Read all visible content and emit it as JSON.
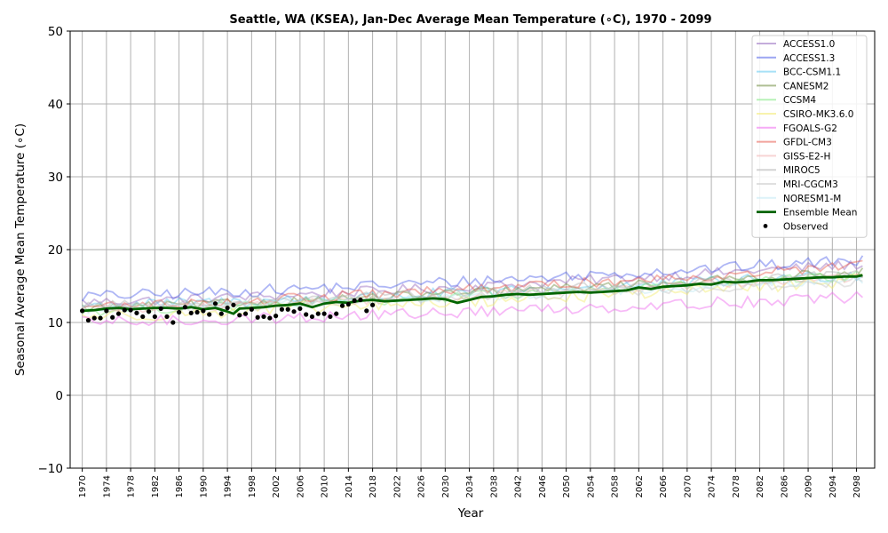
{
  "chart_data": {
    "type": "line",
    "title": "Seattle, WA (KSEA), Jan-Dec Average Mean Temperature (∘C), 1970 - 2099",
    "xlabel": "Year",
    "ylabel": "Seasonal Average Mean Temperature (∘C)",
    "xlim": [
      1968,
      2101
    ],
    "ylim": [
      -10,
      50
    ],
    "yticks": [
      -10,
      0,
      10,
      20,
      30,
      40,
      50
    ],
    "ytick_labels": [
      "−10",
      "0",
      "10",
      "20",
      "30",
      "40",
      "50"
    ],
    "xticks": [
      1970,
      1974,
      1978,
      1982,
      1986,
      1990,
      1994,
      1998,
      2002,
      2006,
      2010,
      2014,
      2018,
      2022,
      2026,
      2030,
      2034,
      2038,
      2042,
      2046,
      2050,
      2054,
      2058,
      2062,
      2066,
      2070,
      2074,
      2078,
      2082,
      2086,
      2090,
      2094,
      2098
    ],
    "xtick_labels": [
      "1970",
      "1974",
      "1978",
      "1982",
      "1986",
      "1990",
      "1994",
      "1998",
      "2002",
      "2006",
      "2010",
      "2014",
      "2018",
      "2022",
      "2026",
      "2030",
      "2034",
      "2038",
      "2042",
      "2046",
      "2050",
      "2054",
      "2058",
      "2062",
      "2066",
      "2070",
      "2074",
      "2078",
      "2082",
      "2086",
      "2090",
      "2094",
      "2098"
    ],
    "grid": true,
    "legend_position": "top-right",
    "models": [
      {
        "name": "ACCESS1.0",
        "color": "#9467bd",
        "start": 12.8,
        "end": 18.0,
        "osc": 0.7
      },
      {
        "name": "ACCESS1.3",
        "color": "#4b5de8",
        "start": 13.6,
        "end": 18.6,
        "osc": 0.8
      },
      {
        "name": "BCC-CSM1.1",
        "color": "#5ec8f0",
        "start": 12.3,
        "end": 16.6,
        "osc": 0.8
      },
      {
        "name": "CANESM2",
        "color": "#6e8b3d",
        "start": 12.0,
        "end": 17.0,
        "osc": 0.6
      },
      {
        "name": "CCSM4",
        "color": "#7ee87e",
        "start": 11.6,
        "end": 16.4,
        "osc": 0.7
      },
      {
        "name": "CSIRO-MK3.6.0",
        "color": "#f2ea6a",
        "start": 10.9,
        "end": 15.8,
        "osc": 0.9
      },
      {
        "name": "FGOALS-G2",
        "color": "#ee66ee",
        "start": 10.0,
        "end": 13.5,
        "osc": 0.8
      },
      {
        "name": "GFDL-CM3",
        "color": "#e8584a",
        "start": 12.2,
        "end": 17.8,
        "osc": 0.7
      },
      {
        "name": "GISS-E2-H",
        "color": "#f3b0b0",
        "start": 11.8,
        "end": 16.2,
        "osc": 0.6
      },
      {
        "name": "MIROC5",
        "color": "#b0b0b0",
        "start": 12.4,
        "end": 16.7,
        "osc": 0.6
      },
      {
        "name": "MRI-CGCM3",
        "color": "#c6c6c6",
        "start": 11.7,
        "end": 15.6,
        "osc": 0.6
      },
      {
        "name": "NORESM1-M",
        "color": "#bfe8f2",
        "start": 11.9,
        "end": 15.9,
        "osc": 0.6
      }
    ],
    "ensemble_mean": {
      "name": "Ensemble Mean",
      "color": "#006400",
      "x": [
        1970,
        1972,
        1974,
        1976,
        1978,
        1980,
        1982,
        1984,
        1986,
        1988,
        1990,
        1992,
        1994,
        1995,
        1996,
        1998,
        2000,
        2002,
        2004,
        2006,
        2008,
        2010,
        2012,
        2014,
        2016,
        2018,
        2020,
        2022,
        2024,
        2026,
        2028,
        2030,
        2032,
        2034,
        2036,
        2038,
        2040,
        2042,
        2044,
        2046,
        2048,
        2050,
        2052,
        2054,
        2056,
        2058,
        2060,
        2062,
        2064,
        2066,
        2068,
        2070,
        2072,
        2074,
        2076,
        2078,
        2080,
        2082,
        2084,
        2086,
        2088,
        2090,
        2092,
        2094,
        2096,
        2098,
        2099
      ],
      "y": [
        11.6,
        11.7,
        11.9,
        12.0,
        11.8,
        11.9,
        12.0,
        12.0,
        11.9,
        12.1,
        11.8,
        12.0,
        11.5,
        11.2,
        11.9,
        12.0,
        12.1,
        12.3,
        12.4,
        12.6,
        12.1,
        12.6,
        12.8,
        12.7,
        13.0,
        13.1,
        12.9,
        13.0,
        13.1,
        13.2,
        13.3,
        13.2,
        12.7,
        13.1,
        13.5,
        13.6,
        13.8,
        13.9,
        13.8,
        13.9,
        14.0,
        14.1,
        14.2,
        14.1,
        14.2,
        14.3,
        14.4,
        14.8,
        14.6,
        14.9,
        15.0,
        15.1,
        15.3,
        15.2,
        15.6,
        15.5,
        15.6,
        15.8,
        15.8,
        15.9,
        16.0,
        16.1,
        16.2,
        16.2,
        16.3,
        16.3,
        16.5
      ]
    },
    "observed": {
      "name": "Observed",
      "color": "#000000",
      "x": [
        1970,
        1971,
        1972,
        1973,
        1974,
        1975,
        1976,
        1977,
        1978,
        1979,
        1980,
        1981,
        1982,
        1983,
        1984,
        1985,
        1986,
        1987,
        1988,
        1989,
        1990,
        1991,
        1992,
        1993,
        1994,
        1995,
        1996,
        1997,
        1998,
        1999,
        2000,
        2001,
        2002,
        2003,
        2004,
        2005,
        2006,
        2007,
        2008,
        2009,
        2010,
        2011,
        2012,
        2013,
        2014,
        2015,
        2016,
        2017,
        2018
      ],
      "y": [
        11.6,
        10.3,
        10.6,
        10.6,
        11.6,
        10.7,
        11.2,
        11.7,
        11.7,
        11.3,
        10.8,
        11.5,
        10.8,
        11.9,
        10.8,
        10.0,
        11.4,
        12.1,
        11.3,
        11.4,
        11.6,
        11.1,
        12.6,
        11.2,
        12.0,
        12.4,
        11.0,
        11.2,
        11.8,
        10.7,
        10.8,
        10.6,
        10.9,
        11.8,
        11.8,
        11.5,
        11.9,
        11.1,
        10.8,
        11.2,
        11.2,
        10.8,
        11.2,
        12.3,
        12.5,
        13.0,
        13.1,
        11.6,
        12.4
      ]
    }
  }
}
